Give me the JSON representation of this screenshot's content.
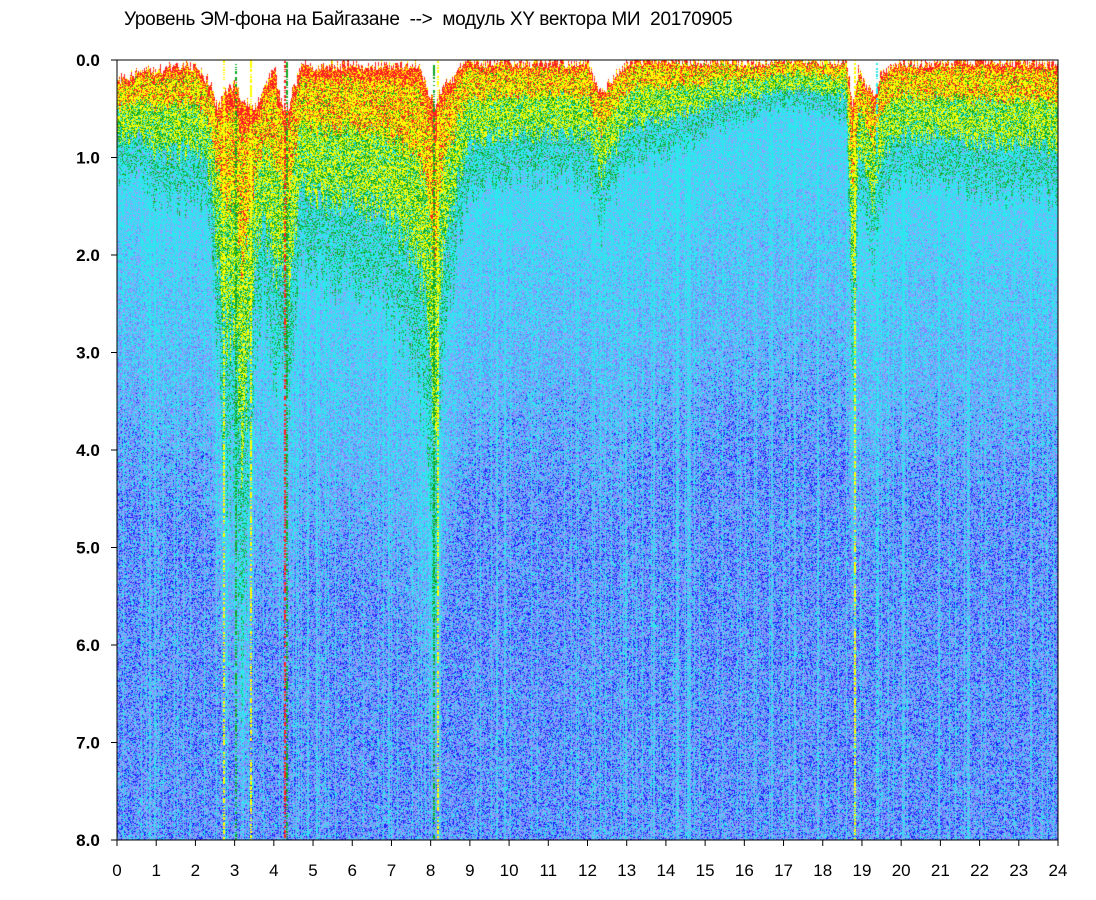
{
  "chart_data": {
    "type": "heatmap",
    "title": "Уровень ЭМ-фона на Байгазане  -->  модуль XY вектора МИ  20170905",
    "xlabel": "",
    "ylabel": "",
    "xlim": [
      0,
      24
    ],
    "ylim": [
      0,
      8
    ],
    "y_inverted": true,
    "x_ticks": [
      "0",
      "1",
      "2",
      "3",
      "4",
      "5",
      "6",
      "7",
      "8",
      "9",
      "10",
      "11",
      "12",
      "13",
      "14",
      "15",
      "16",
      "17",
      "18",
      "19",
      "20",
      "21",
      "22",
      "23",
      "24"
    ],
    "y_ticks": [
      "0.0",
      "1.0",
      "2.0",
      "3.0",
      "4.0",
      "5.0",
      "6.0",
      "7.0",
      "8.0"
    ],
    "grid": false,
    "legend": "none",
    "colormap": [
      "#1a1aff",
      "#6b7bff",
      "#8fa3ff",
      "#2ee6ee",
      "#11aa22",
      "#ffff00",
      "#ff2222"
    ],
    "colormap_order": "low to high density",
    "top_envelope": {
      "hours": [
        0,
        0.3,
        0.6,
        1.0,
        1.5,
        2.0,
        2.4,
        2.55,
        2.8,
        3.0,
        3.2,
        3.5,
        3.7,
        4.0,
        4.15,
        4.3,
        4.45,
        4.7,
        5.0,
        5.5,
        6.0,
        6.5,
        7.0,
        7.4,
        7.7,
        7.9,
        8.1,
        8.3,
        8.55,
        8.7,
        9.0,
        10.0,
        11.0,
        12.0,
        12.3,
        13.0,
        14.0,
        15.0,
        16.0,
        17.0,
        18.0,
        18.6,
        18.75,
        18.9,
        19.1,
        19.3,
        19.5,
        19.8,
        20.0,
        21.0,
        22.0,
        23.0,
        24.0
      ],
      "red_onset": [
        0.2,
        0.15,
        0.1,
        0.1,
        0.05,
        0.05,
        0.25,
        0.5,
        0.3,
        0.25,
        0.4,
        0.5,
        0.3,
        0.05,
        0.4,
        0.55,
        0.35,
        0.05,
        0.05,
        0.05,
        0.05,
        0.05,
        0.05,
        0.05,
        0.05,
        0.3,
        0.45,
        0.25,
        0.2,
        0.05,
        0.02,
        0.02,
        0.02,
        0.02,
        0.35,
        0.0,
        0.0,
        0.0,
        0.02,
        0.0,
        0.0,
        0.02,
        0.45,
        0.1,
        0.25,
        0.35,
        0.1,
        0.05,
        0.02,
        0.02,
        0.02,
        0.02,
        0.05
      ],
      "green_depth": [
        1.0,
        1.1,
        1.0,
        1.2,
        1.3,
        1.1,
        1.5,
        2.5,
        3.8,
        3.5,
        5.5,
        2.5,
        2.0,
        2.8,
        2.5,
        3.2,
        2.5,
        1.7,
        1.8,
        2.0,
        1.8,
        2.0,
        2.2,
        2.5,
        2.8,
        3.5,
        5.0,
        2.5,
        2.0,
        1.5,
        1.1,
        1.0,
        1.0,
        1.0,
        1.5,
        0.9,
        0.8,
        0.6,
        0.5,
        0.4,
        0.45,
        0.5,
        3.0,
        1.2,
        1.5,
        1.8,
        1.2,
        1.0,
        1.0,
        1.0,
        1.1,
        1.1,
        1.2
      ]
    },
    "bright_streaks": [
      {
        "hour": 2.7,
        "color": "yellow"
      },
      {
        "hour": 3.0,
        "color": "green"
      },
      {
        "hour": 3.4,
        "color": "yellow"
      },
      {
        "hour": 4.25,
        "color": "red"
      },
      {
        "hour": 4.3,
        "color": "green"
      },
      {
        "hour": 8.05,
        "color": "green"
      },
      {
        "hour": 8.15,
        "color": "yellow"
      },
      {
        "hour": 18.8,
        "color": "yellow"
      },
      {
        "hour": 19.35,
        "color": "cyan"
      }
    ]
  }
}
